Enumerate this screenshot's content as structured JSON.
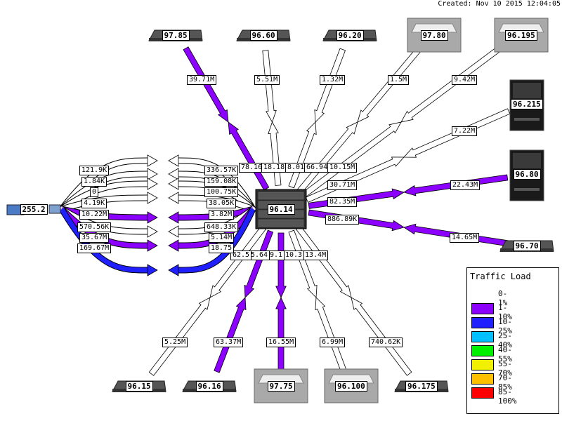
{
  "created": "Created: Nov 10 2015 12:04:05",
  "hub": {
    "label": "96.14"
  },
  "source": {
    "label": "255.2"
  },
  "devices": [
    {
      "label": "97.85",
      "kind": "rack"
    },
    {
      "label": "96.60",
      "kind": "rack"
    },
    {
      "label": "96.20",
      "kind": "rack"
    },
    {
      "label": "97.80",
      "kind": "switch"
    },
    {
      "label": "96.195",
      "kind": "switch"
    },
    {
      "label": "96.215",
      "kind": "tower"
    },
    {
      "label": "96.80",
      "kind": "tower"
    },
    {
      "label": "96.70",
      "kind": "rack"
    },
    {
      "label": "96.175",
      "kind": "rack"
    },
    {
      "label": "96.100",
      "kind": "switch"
    },
    {
      "label": "97.75",
      "kind": "switch"
    },
    {
      "label": "96.16",
      "kind": "rack"
    },
    {
      "label": "96.15",
      "kind": "rack"
    }
  ],
  "links": [
    {
      "device": "97.85",
      "far": "39.71M",
      "near": "78.16",
      "load": "1-10%"
    },
    {
      "device": "96.60",
      "far": "5.51M",
      "near": "18.18",
      "load": "0-1%"
    },
    {
      "device": "96.20",
      "far": "1.32M",
      "near": "8.01",
      "load": "0-1%"
    },
    {
      "device": "97.80",
      "far": "1.5M",
      "near": "66.94",
      "load": "0-1%"
    },
    {
      "device": "96.195",
      "far": "9.42M",
      "near": "10.15M",
      "load": "0-1%"
    },
    {
      "device": "96.215",
      "far": "7.22M",
      "near": "30.71M",
      "load": "0-1%"
    },
    {
      "device": "96.80",
      "far": "22.43M",
      "near": "82.35M",
      "load": "1-10%"
    },
    {
      "device": "96.70",
      "far": "14.65M",
      "near": "886.89K",
      "load": "1-10%"
    },
    {
      "device": "96.175",
      "far": "740.62K",
      "near": "13.4M",
      "load": "0-1%"
    },
    {
      "device": "96.100",
      "far": "6.99M",
      "near": "10.3",
      "load": "0-1%"
    },
    {
      "device": "97.75",
      "far": "16.55M",
      "near": "9.1",
      "load": "1-10%"
    },
    {
      "device": "96.16",
      "far": "63.37M",
      "near": "5.64",
      "load": "1-10%"
    },
    {
      "device": "96.15",
      "far": "5.25M",
      "near": "62.5",
      "load": "0-1%"
    }
  ],
  "source_links": [
    {
      "left": "121.9K",
      "right": "336.57K",
      "load": "0-1%"
    },
    {
      "left": "1.84K",
      "right": "159.08K",
      "load": "0-1%"
    },
    {
      "left": "0",
      "right": "100.75K",
      "load": "0-1%"
    },
    {
      "left": "4.19K",
      "right": "38.05K",
      "load": "0-1%"
    },
    {
      "left": "10.22M",
      "right": "3.82M",
      "load": "1-10%"
    },
    {
      "left": "570.56K",
      "right": "648.33K",
      "load": "0-1%"
    },
    {
      "left": "35.67M",
      "right": "5.14M",
      "load": "1-10%"
    },
    {
      "left": "169.67M",
      "right": "18.75",
      "load": "10-25%"
    }
  ],
  "legend": {
    "title": "Traffic Load",
    "items": [
      {
        "label": "0-1%",
        "color": "#ffffff",
        "boxed": false
      },
      {
        "label": "1-10%",
        "color": "#8c00ff"
      },
      {
        "label": "10-25%",
        "color": "#2020ff"
      },
      {
        "label": "25-40%",
        "color": "#00c0ff"
      },
      {
        "label": "40-55%",
        "color": "#00f000"
      },
      {
        "label": "55-70%",
        "color": "#f0f000"
      },
      {
        "label": "70-85%",
        "color": "#ffc000"
      },
      {
        "label": "85-100%",
        "color": "#ff0000"
      }
    ]
  }
}
